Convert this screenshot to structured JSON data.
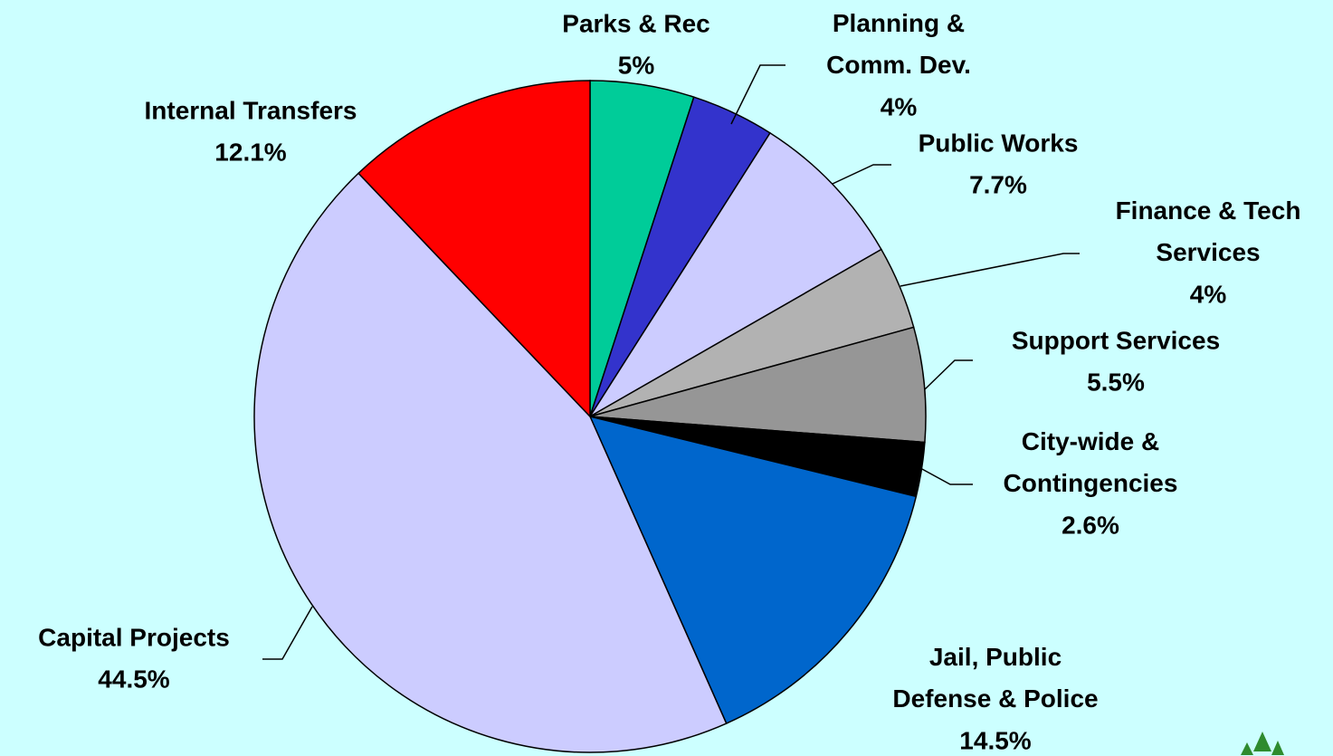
{
  "chart_data": {
    "type": "pie",
    "categories": [
      "Parks & Rec",
      "Planning &\nComm. Dev.",
      "Public Works",
      "Finance & Tech\nServices",
      "Support Services",
      "City-wide &\nContingencies",
      "Jail, Public\nDefense & Police",
      "Capital Projects",
      "Internal Transfers"
    ],
    "values": [
      5,
      4,
      7.7,
      4,
      5.5,
      2.6,
      14.5,
      44.5,
      12.1
    ],
    "value_labels": [
      "5%",
      "4%",
      "7.7%",
      "4%",
      "5.5%",
      "2.6%",
      "14.5%",
      "44.5%",
      "12.1%"
    ],
    "colors": [
      "#00cc99",
      "#3333cc",
      "#ccccff",
      "#b2b2b2",
      "#969696",
      "#000000",
      "#0066cc",
      "#ccccff",
      "#ff0000"
    ]
  }
}
